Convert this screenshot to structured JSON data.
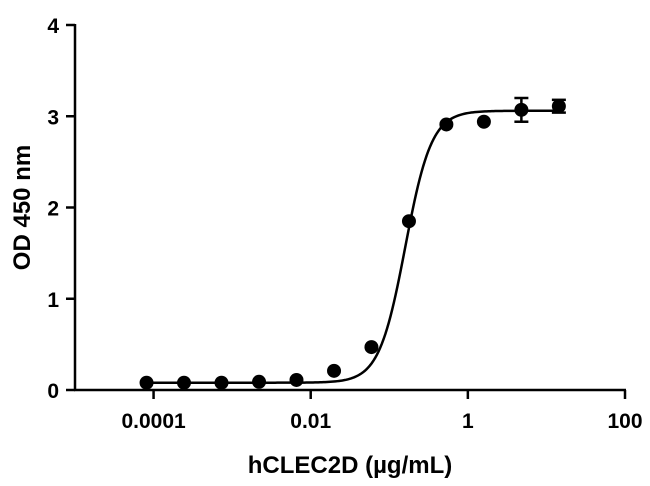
{
  "chart_data": {
    "type": "scatter",
    "title": "",
    "xlabel": "hCLEC2D (µg/mL)",
    "ylabel": "OD 450 nm",
    "xscale": "log",
    "xlim": [
      1e-05,
      100
    ],
    "ylim": [
      0,
      4
    ],
    "x_ticks": [
      0.0001,
      0.01,
      1,
      100
    ],
    "x_tick_labels": [
      "0.0001",
      "0.01",
      "1",
      "100"
    ],
    "y_ticks": [
      0,
      1,
      2,
      3,
      4
    ],
    "y_tick_labels": [
      "0",
      "1",
      "2",
      "3",
      "4"
    ],
    "grid": false,
    "legend": "none",
    "series": [
      {
        "x": [
          8.14e-05,
          0.000244,
          0.000732,
          0.0022,
          0.00659,
          0.0198,
          0.0593,
          0.178,
          0.533,
          1.6,
          4.8,
          14.4
        ],
        "y": [
          0.08,
          0.08,
          0.08,
          0.09,
          0.11,
          0.21,
          0.47,
          1.85,
          2.91,
          2.94,
          3.07,
          3.11
        ],
        "error": [
          0,
          0,
          0,
          0,
          0,
          0,
          0,
          0,
          0,
          0,
          0.13,
          0.07
        ]
      }
    ],
    "fit_curve": {
      "bottom": 0.08,
      "top": 3.06,
      "ec50": 0.16,
      "hill": 2.6
    },
    "colors": {
      "marker": "#000000",
      "line": "#000000"
    }
  }
}
